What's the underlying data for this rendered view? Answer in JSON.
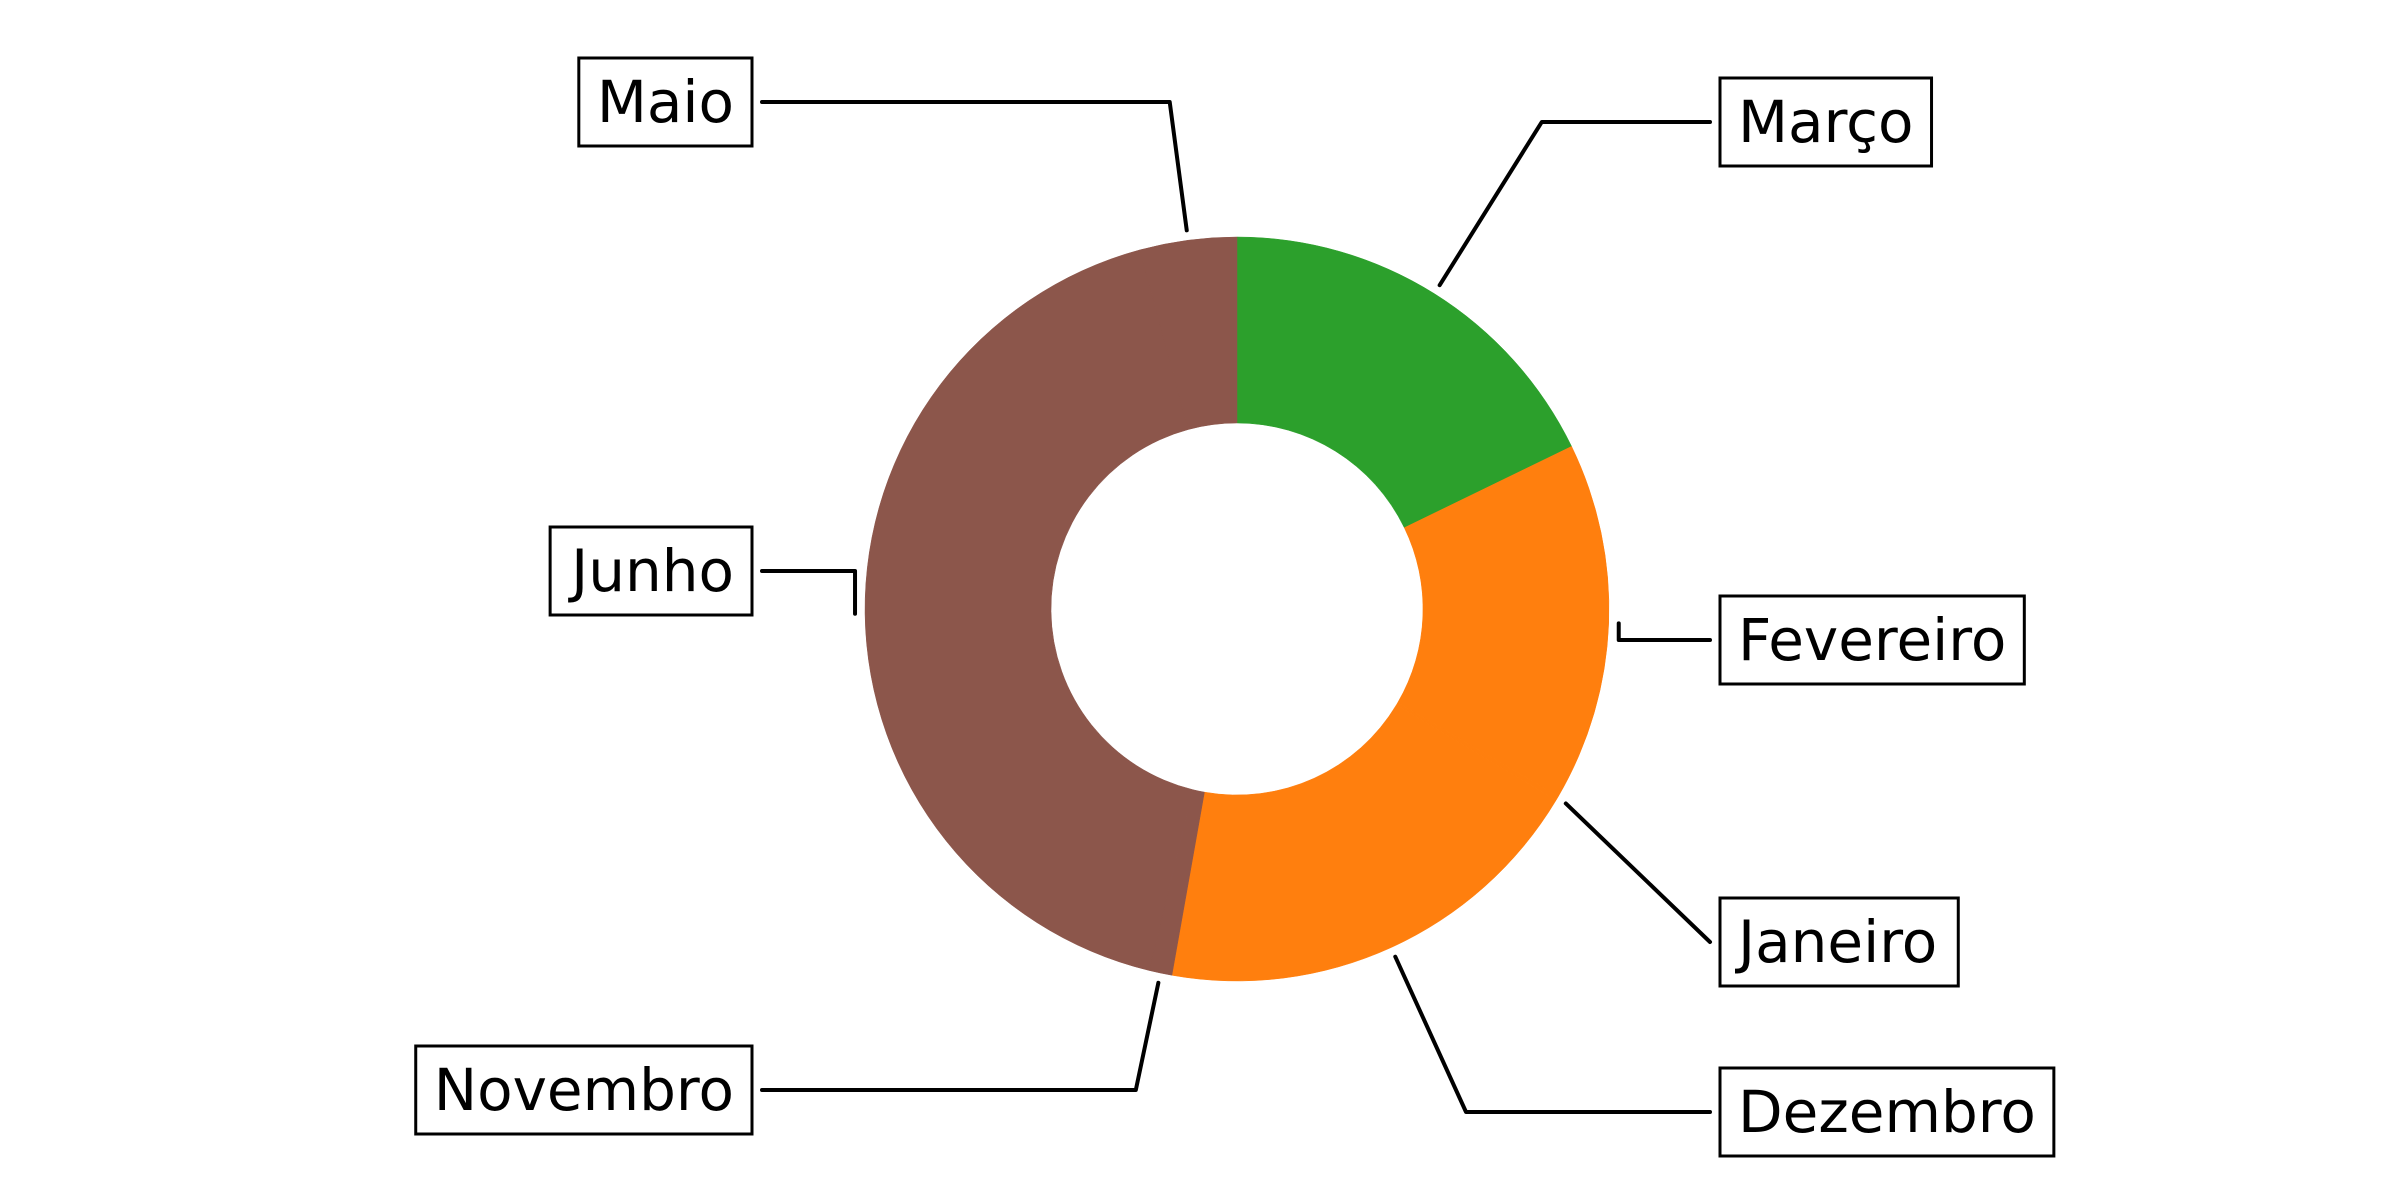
{
  "chart_data": {
    "type": "pie",
    "donut": true,
    "title": "",
    "start_angle_deg": 90,
    "direction": "clockwise",
    "slices": [
      {
        "label": "Março",
        "value": 17.8,
        "color": "#2ca02c"
      },
      {
        "label": "Fevereiro",
        "value": 15.6,
        "color": "#ff7f0e"
      },
      {
        "label": "Janeiro",
        "value": 0.2,
        "color": "#ff7f0e"
      },
      {
        "label": "Dezembro",
        "value": 19.2,
        "color": "#ff7f0e"
      },
      {
        "label": "Novembro",
        "value": 1.0,
        "color": "#8c564b"
      },
      {
        "label": "Junho",
        "value": 42.0,
        "color": "#8c564b"
      },
      {
        "label": "Maio",
        "value": 4.2,
        "color": "#8c564b"
      }
    ]
  }
}
